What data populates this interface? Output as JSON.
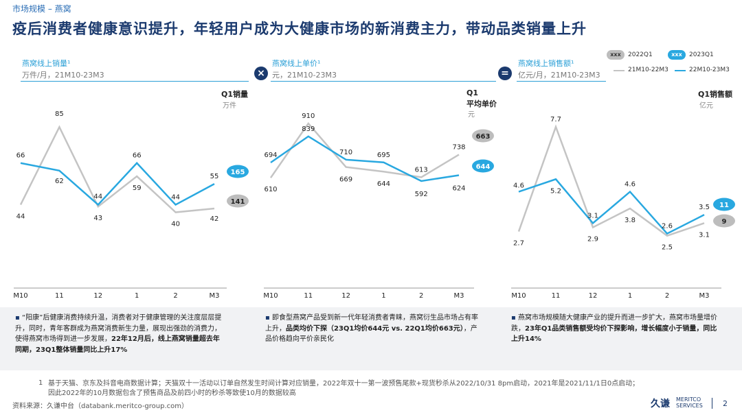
{
  "header": {
    "breadcrumb": "市场规模 – 燕窝",
    "title": "疫后消费者健康意识提升，年轻用户成为大健康市场的新消费主力，带动品类销量上升"
  },
  "legend": {
    "pill_text": "xxx",
    "q2022": "2022Q1",
    "q2023": "2023Q1",
    "line2022": "21M10-22M3",
    "line2023": "22M10-23M3"
  },
  "operators": {
    "multiply": "×",
    "equals": "="
  },
  "panels": [
    {
      "title": "燕窝线上销量¹",
      "subtitle": "万件/月，21M10-23M3",
      "q1_label": "Q1销量",
      "q1_unit": "万件",
      "notes_bullet": "▪",
      "note_parts": [
        {
          "t": "“阳康”后健康消费持续升温，消费者对于健康管理的关注度层层提升，同时，青年客群成为燕窝消费新生力量，展现出强劲的消费力，使得燕窝市场得到进一步发展，",
          "b": false
        },
        {
          "t": "22年12月后，线上燕窝销量超去年同期，23Q1整体销量同比上升17%",
          "b": true
        }
      ]
    },
    {
      "title": "燕窝线上单价¹",
      "subtitle": "元，21M10-23M3",
      "q1_label": "Q1",
      "q1_label2": "平均单价",
      "q1_unit": "元",
      "notes_bullet": "▪",
      "note_parts": [
        {
          "t": "即食型燕窝产品受到新一代年轻消费者青睐，燕窝衍生品市场占有率上升，",
          "b": false
        },
        {
          "t": "品类均价下探（23Q1均价644元 vs. 22Q1均价663元）",
          "b": true
        },
        {
          "t": "，产品价格趋向平价亲民化",
          "b": false
        }
      ]
    },
    {
      "title": "燕窝线上销售额¹",
      "subtitle": "亿元/月，21M10-23M3",
      "q1_label": "Q1销售额",
      "q1_unit": "亿元",
      "notes_bullet": "▪",
      "note_parts": [
        {
          "t": "燕窝市场规模随大健康产业的提升而进一步扩大，燕窝市场量增价跌，",
          "b": false
        },
        {
          "t": "23年Q1品类销售额受均价下探影响，增长幅度小于销量，同比上升14%",
          "b": true
        }
      ]
    }
  ],
  "chart_data": [
    {
      "type": "line",
      "categories": [
        "M10",
        "11",
        "12",
        "1",
        "2",
        "M3"
      ],
      "series": [
        {
          "name": "21M10-22M3",
          "values": [
            44,
            85,
            43,
            59,
            40,
            42
          ],
          "labels": [
            "44",
            "85",
            "43",
            "59",
            "40",
            "42"
          ]
        },
        {
          "name": "22M10-23M3",
          "values": [
            66,
            62,
            44,
            66,
            44,
            55
          ],
          "labels": [
            "66",
            "62",
            "44",
            "66",
            "44",
            "55"
          ]
        }
      ],
      "q1": {
        "2022Q1": "141",
        "2023Q1": "165"
      },
      "ylim": [
        0,
        105
      ]
    },
    {
      "type": "line",
      "categories": [
        "M10",
        "11",
        "12",
        "1",
        "2",
        "M3"
      ],
      "series": [
        {
          "name": "21M10-22M3",
          "values": [
            610,
            910,
            669,
            644,
            613,
            738
          ],
          "labels": [
            "610",
            "910",
            "669",
            "644",
            "613",
            "738"
          ]
        },
        {
          "name": "22M10-23M3",
          "values": [
            694,
            839,
            710,
            695,
            592,
            624
          ],
          "labels": [
            "694",
            "839",
            "710",
            "695",
            "592",
            "624"
          ]
        }
      ],
      "q1": {
        "2022Q1": "663",
        "2023Q1": "644"
      },
      "ylim": [
        0,
        1100
      ]
    },
    {
      "type": "line",
      "categories": [
        "M10",
        "11",
        "12",
        "1",
        "2",
        "M3"
      ],
      "series": [
        {
          "name": "21M10-22M3",
          "values": [
            2.7,
            7.7,
            2.9,
            3.8,
            2.5,
            3.1
          ],
          "labels": [
            "2.7",
            "7.7",
            "2.9",
            "3.8",
            "2.5",
            "3.1"
          ]
        },
        {
          "name": "22M10-23M3",
          "values": [
            4.6,
            5.2,
            3.1,
            4.6,
            2.6,
            3.5
          ],
          "labels": [
            "4.6",
            "5.2",
            "3.1",
            "4.6",
            "2.6",
            "3.5"
          ]
        }
      ],
      "q1": {
        "2022Q1": "9",
        "2023Q1": "11"
      },
      "ylim": [
        0,
        9.5
      ]
    }
  ],
  "colors": {
    "gray": "#c4c4c4",
    "blue": "#29a8e0",
    "navy": "#1b3a6e",
    "pill_gray": "#bdbdbd"
  },
  "footer": {
    "footnote_num": "1",
    "footnote": "基于天猫、京东及抖音电商数据计算；天猫双十一活动以订单自然发生时间计算对应销量，2022年双十一第一波预售尾款+现货秒杀从2022/10/31 8pm启动，2021年是2021/11/1日0点启动；因此2022年的10月数据包含了预售商品及前四小时的秒杀等致使10月的数据较高",
    "source": "资料来源：久谦中台（databank.meritco-group.com）",
    "logo_cn": "久谦",
    "logo_en1": "MERITCO",
    "logo_en2": "SERVICES",
    "page": "2"
  }
}
